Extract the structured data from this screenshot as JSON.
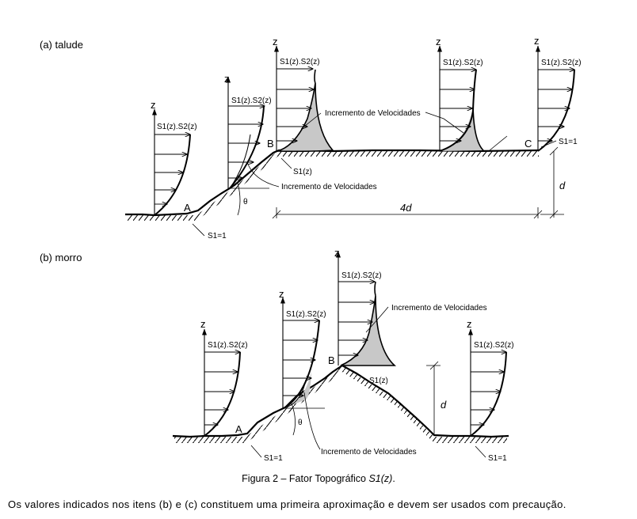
{
  "sections": {
    "a_label": "(a)  talude",
    "b_label": "(b)  morro"
  },
  "labels": {
    "z": "z",
    "profile": "S1(z).S2(z)",
    "increment": "Incremento de Velocidades",
    "s1z": "S1(z)",
    "s1_eq_1": "S1=1",
    "theta": "θ",
    "d": "d",
    "four_d": "4d",
    "A": "A",
    "B": "B",
    "C": "C"
  },
  "caption": {
    "prefix": "Figura 2 – Fator Topográfico ",
    "symbol": "S1(z)",
    "suffix": "."
  },
  "paragraph": "Os valores indicados nos itens (b) e (c) constituem uma primeira aproximação e devem ser usados com precaução."
}
